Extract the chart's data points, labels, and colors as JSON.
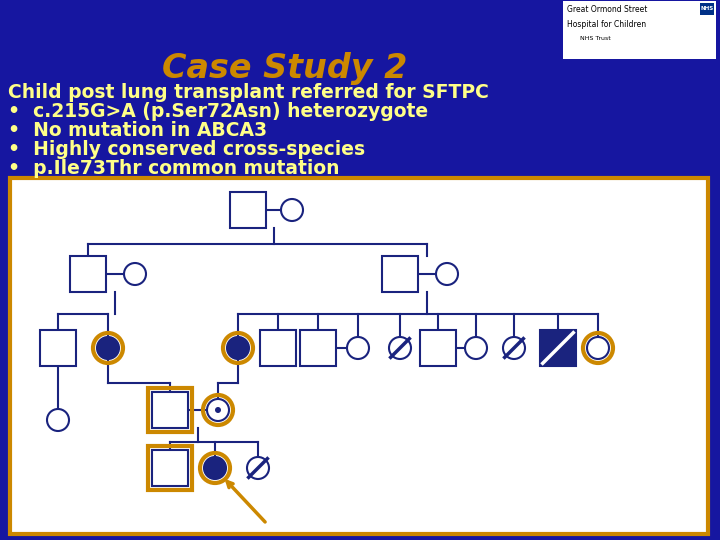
{
  "bg_color": "#1616a0",
  "title": "Case Study 2",
  "title_color": "#cc8800",
  "text_color": "#ffff88",
  "bullet_lines": [
    "Child post lung transplant referred for SFTPC",
    "c.215G>A (p.Ser72Asn) heterozygote",
    "No mutation in ABCA3",
    "Highly conserved cross-species",
    "p.Ile73Thr common mutation"
  ],
  "navy": "#1a237e",
  "orange": "#cc8800",
  "white": "#ffffff"
}
